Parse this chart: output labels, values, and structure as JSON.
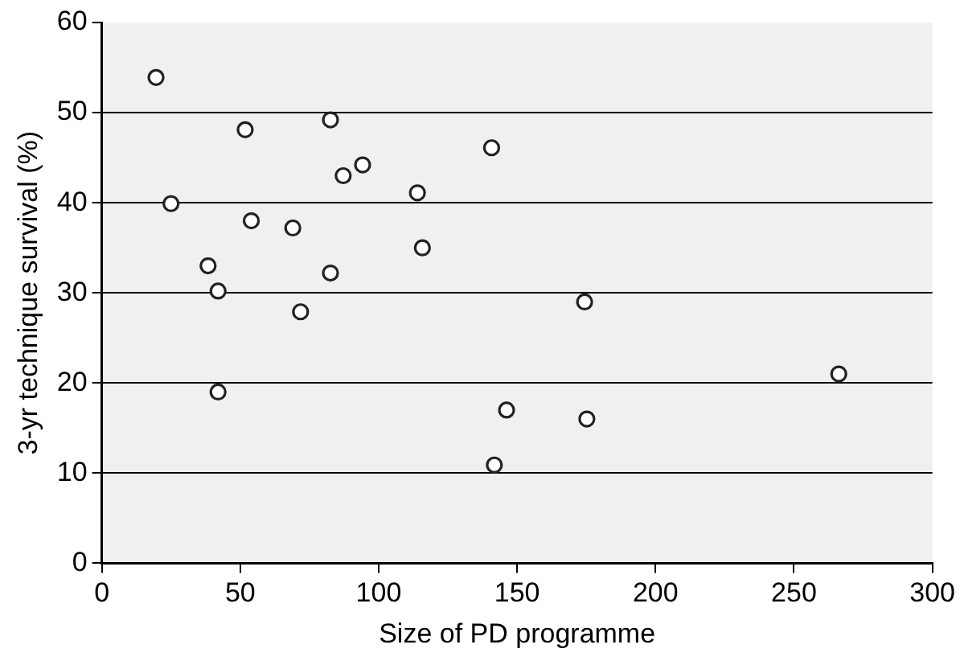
{
  "chart_data": {
    "type": "scatter",
    "xlabel": "Size of PD programme",
    "ylabel": "3-yr technique survival (%)",
    "x": [
      19.6,
      51.8,
      82.6,
      140.8,
      94.2,
      87.2,
      25,
      114,
      54,
      69,
      115.8,
      38.4,
      42,
      82.6,
      71.8,
      42,
      146.2,
      141.8,
      174.4,
      175.2,
      266.2
    ],
    "values": [
      53.9,
      48.1,
      49.2,
      46.1,
      44.2,
      43.0,
      39.9,
      41.1,
      38.0,
      37.2,
      35.0,
      33.0,
      30.2,
      32.2,
      27.9,
      19.0,
      17.0,
      10.9,
      29.0,
      16.0,
      21.0
    ],
    "color": "#222222",
    "marker": "circle",
    "xlim": [
      0,
      300
    ],
    "xticks": [
      0,
      50,
      100,
      150,
      200,
      250,
      300
    ],
    "ylim": [
      0,
      60
    ],
    "yticks": [
      0,
      10,
      20,
      30,
      40,
      50,
      60
    ],
    "grid": "y",
    "legend": false
  }
}
